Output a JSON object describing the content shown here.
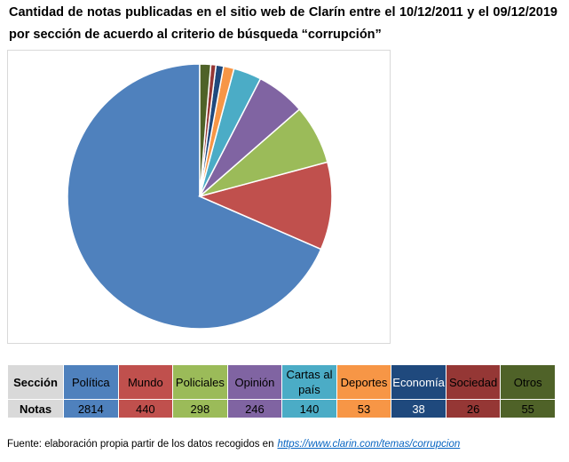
{
  "title": "Cantidad de notas publicadas en el sitio web de Clarín entre el 10/12/2011 y el 09/12/2019 por sección de acuerdo al criterio de búsqueda “corrupción”",
  "chart_data": {
    "type": "pie",
    "title": "Cantidad de notas publicadas en el sitio web de Clarín entre el 10/12/2011 y el 09/12/2019 por sección de acuerdo al criterio de búsqueda “corrupción”",
    "categories": [
      "Política",
      "Mundo",
      "Policiales",
      "Opinión",
      "Cartas al país",
      "Deportes",
      "Economía",
      "Sociedad",
      "Otros"
    ],
    "values": [
      2814,
      440,
      298,
      246,
      140,
      53,
      38,
      26,
      55
    ],
    "colors": [
      "#4f81bd",
      "#c0504d",
      "#9bbb59",
      "#8064a2",
      "#4bacc6",
      "#f79646",
      "#1f497d",
      "#953735",
      "#4f6228"
    ],
    "start_angle_deg": 0,
    "direction": "counterclockwise",
    "legend": "none"
  },
  "table": {
    "row1_header": "Sección",
    "row2_header": "Notas",
    "columns": [
      {
        "label": "Política",
        "value": "2814",
        "bg": "#4f81bd",
        "fg": "#000000"
      },
      {
        "label": "Mundo",
        "value": "440",
        "bg": "#c0504d",
        "fg": "#000000"
      },
      {
        "label": "Policiales",
        "value": "298",
        "bg": "#9bbb59",
        "fg": "#000000"
      },
      {
        "label": "Opinión",
        "value": "246",
        "bg": "#8064a2",
        "fg": "#000000"
      },
      {
        "label": "Cartas al país",
        "value": "140",
        "bg": "#4bacc6",
        "fg": "#000000"
      },
      {
        "label": "Deportes",
        "value": "53",
        "bg": "#f79646",
        "fg": "#000000"
      },
      {
        "label": "Economía",
        "value": "38",
        "bg": "#1f497d",
        "fg": "#ffffff"
      },
      {
        "label": "Sociedad",
        "value": "26",
        "bg": "#953735",
        "fg": "#000000"
      },
      {
        "label": "Otros",
        "value": "55",
        "bg": "#4f6228",
        "fg": "#000000"
      }
    ]
  },
  "source": {
    "text": "Fuente: elaboración propia partir de los datos recogidos en",
    "link": "https://www.clarin.com/temas/corrupcion"
  }
}
